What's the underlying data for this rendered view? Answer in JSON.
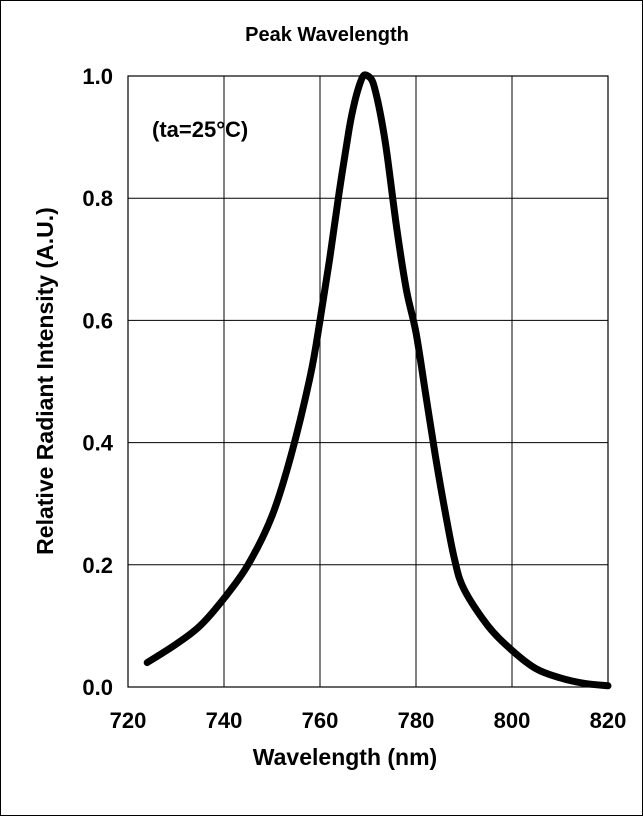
{
  "chart_data": {
    "type": "line",
    "title": "Peak Wavelength",
    "annotation": "(ta=25°C)",
    "xlabel": "Wavelength (nm)",
    "ylabel": "Relative Radiant Intensity (A.U.)",
    "xlim": [
      720,
      820
    ],
    "ylim": [
      0.0,
      1.0
    ],
    "grid": true,
    "x_ticks": [
      "720",
      "740",
      "760",
      "780",
      "800",
      "820"
    ],
    "y_ticks": [
      "0.0",
      "0.2",
      "0.4",
      "0.6",
      "0.8",
      "1.0"
    ],
    "series": [
      {
        "x": [
          724,
          730,
          735,
          740,
          745,
          750,
          754,
          758,
          760,
          762,
          764,
          766,
          767,
          768,
          769,
          770,
          771,
          772,
          773,
          774,
          776,
          778,
          780,
          782,
          784,
          786,
          788,
          790,
          795,
          800,
          805,
          810,
          815,
          820
        ],
        "y": [
          0.04,
          0.07,
          0.1,
          0.145,
          0.2,
          0.28,
          0.38,
          0.51,
          0.6,
          0.7,
          0.81,
          0.91,
          0.95,
          0.98,
          1.0,
          1.0,
          0.99,
          0.96,
          0.92,
          0.87,
          0.75,
          0.65,
          0.58,
          0.48,
          0.38,
          0.29,
          0.21,
          0.16,
          0.1,
          0.06,
          0.03,
          0.015,
          0.006,
          0.002
        ]
      }
    ],
    "line_color": "#000000"
  }
}
